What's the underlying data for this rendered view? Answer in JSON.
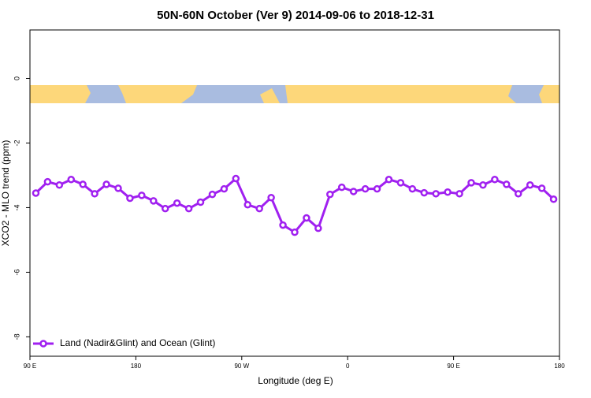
{
  "chart_data": {
    "type": "line",
    "title": "50N-60N October (Ver 9)   2014-09-06 to 2018-12-31",
    "x_label": "Longitude (deg E)",
    "y_label": "XCO2 - MLO trend (ppm)",
    "x": [
      95,
      105,
      115,
      125,
      135,
      145,
      155,
      165,
      175,
      185,
      195,
      205,
      215,
      225,
      235,
      245,
      255,
      265,
      275,
      285,
      295,
      305,
      315,
      325,
      335,
      345,
      355,
      365,
      375,
      385,
      395,
      405,
      415,
      425,
      435,
      445,
      455,
      465,
      475,
      485,
      495,
      505,
      515,
      525,
      535
    ],
    "series": [
      {
        "name": "Land (Nadir&Glint) and Ocean (Glint)",
        "color": "#a020f0",
        "values": [
          -3.55,
          -3.2,
          -3.3,
          -3.13,
          -3.28,
          -3.57,
          -3.28,
          -3.4,
          -3.71,
          -3.62,
          -3.79,
          -4.03,
          -3.86,
          -4.03,
          -3.83,
          -3.59,
          -3.42,
          -3.1,
          -3.91,
          -4.03,
          -3.69,
          -4.54,
          -4.76,
          -4.32,
          -4.64,
          -3.59,
          -3.37,
          -3.5,
          -3.42,
          -3.42,
          -3.13,
          -3.23,
          -3.42,
          -3.54,
          -3.57,
          -3.52,
          -3.57,
          -3.23,
          -3.3,
          -3.13,
          -3.28,
          -3.57,
          -3.3,
          -3.4,
          -3.74
        ]
      }
    ],
    "xlim": [
      90,
      540
    ],
    "xticks": [
      {
        "value": 90,
        "label": "90 E"
      },
      {
        "value": 180,
        "label": "180"
      },
      {
        "value": 270,
        "label": "90 W"
      },
      {
        "value": 360,
        "label": "0"
      },
      {
        "value": 450,
        "label": "90 E"
      },
      {
        "value": 540,
        "label": "180"
      }
    ],
    "ylim": [
      -8.6,
      1.5
    ],
    "yticks": [
      0,
      -2,
      -4,
      -6,
      -8
    ],
    "legend": "bottom-left"
  }
}
